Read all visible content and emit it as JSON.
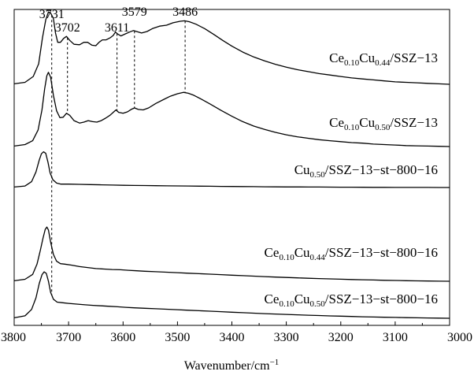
{
  "chart_data": {
    "type": "line",
    "title": "",
    "xlabel": "Wavenumber/cm",
    "xlabel_sup": "−1",
    "ylabel": "",
    "xlim": [
      3800,
      3000
    ],
    "x_reversed": true,
    "xticks": [
      3800,
      3700,
      3600,
      3500,
      3400,
      3300,
      3200,
      3100,
      3000
    ],
    "y_axis_visible": false,
    "grid": false,
    "legend": "none",
    "line_color": "#000000",
    "peak_labels": [
      {
        "label": "3731",
        "x": 3731,
        "dash_bottom_series": 4
      },
      {
        "label": "3702",
        "x": 3702,
        "dash_bottom_series": 1
      },
      {
        "label": "3611",
        "x": 3611,
        "dash_bottom_series": 1
      },
      {
        "label": "3579",
        "x": 3579,
        "dash_bottom_series": 1
      },
      {
        "label": "3486",
        "x": 3486,
        "dash_bottom_series": 1
      }
    ],
    "series": [
      {
        "name": "Ce0.10Cu0.44/SSZ-13",
        "label_parts": [
          [
            "Ce",
            ""
          ],
          [
            "0.10",
            "sub"
          ],
          [
            "Cu",
            ""
          ],
          [
            "0.44",
            "sub"
          ],
          [
            "/SSZ-13",
            ""
          ]
        ],
        "points": [
          [
            3800,
            0.1
          ],
          [
            3780,
            0.4
          ],
          [
            3765,
            1.6
          ],
          [
            3755,
            4.2
          ],
          [
            3748,
            9.5
          ],
          [
            3742,
            13.2
          ],
          [
            3737,
            14.8
          ],
          [
            3733,
            14.6
          ],
          [
            3728,
            13.5
          ],
          [
            3724,
            10.5
          ],
          [
            3720,
            8.6
          ],
          [
            3715,
            8.6
          ],
          [
            3709,
            9.4
          ],
          [
            3704,
            9.8
          ],
          [
            3698,
            9.0
          ],
          [
            3690,
            8.2
          ],
          [
            3680,
            8.1
          ],
          [
            3672,
            8.6
          ],
          [
            3665,
            8.6
          ],
          [
            3657,
            8.0
          ],
          [
            3650,
            7.9
          ],
          [
            3644,
            8.6
          ],
          [
            3638,
            9.1
          ],
          [
            3631,
            9.1
          ],
          [
            3624,
            9.5
          ],
          [
            3618,
            10.0
          ],
          [
            3614,
            10.7
          ],
          [
            3610,
            10.3
          ],
          [
            3604,
            9.9
          ],
          [
            3596,
            10.3
          ],
          [
            3588,
            10.7
          ],
          [
            3581,
            11.0
          ],
          [
            3575,
            10.8
          ],
          [
            3566,
            10.5
          ],
          [
            3556,
            10.8
          ],
          [
            3546,
            11.4
          ],
          [
            3533,
            11.9
          ],
          [
            3520,
            12.1
          ],
          [
            3508,
            12.6
          ],
          [
            3495,
            12.9
          ],
          [
            3487,
            13.0
          ],
          [
            3478,
            12.8
          ],
          [
            3466,
            12.3
          ],
          [
            3450,
            11.4
          ],
          [
            3433,
            10.2
          ],
          [
            3417,
            9.0
          ],
          [
            3400,
            7.8
          ],
          [
            3380,
            6.6
          ],
          [
            3360,
            5.6
          ],
          [
            3340,
            4.8
          ],
          [
            3320,
            4.1
          ],
          [
            3300,
            3.5
          ],
          [
            3280,
            3.0
          ],
          [
            3260,
            2.6
          ],
          [
            3240,
            2.2
          ],
          [
            3220,
            1.9
          ],
          [
            3200,
            1.6
          ],
          [
            3180,
            1.3
          ],
          [
            3160,
            1.1
          ],
          [
            3140,
            0.9
          ],
          [
            3120,
            0.7
          ],
          [
            3100,
            0.5
          ],
          [
            3080,
            0.4
          ],
          [
            3060,
            0.3
          ],
          [
            3040,
            0.2
          ],
          [
            3020,
            0.1
          ],
          [
            3000,
            0.0
          ]
        ]
      },
      {
        "name": "Ce0.10Cu0.50/SSZ-13",
        "label_parts": [
          [
            "Ce",
            ""
          ],
          [
            "0.10",
            "sub"
          ],
          [
            "Cu",
            ""
          ],
          [
            "0.50",
            "sub"
          ],
          [
            "/SSZ-13",
            ""
          ]
        ],
        "points": [
          [
            3800,
            0.1
          ],
          [
            3780,
            0.4
          ],
          [
            3766,
            1.2
          ],
          [
            3756,
            3.4
          ],
          [
            3749,
            7.5
          ],
          [
            3744,
            11.8
          ],
          [
            3740,
            14.5
          ],
          [
            3737,
            15.2
          ],
          [
            3733,
            14.2
          ],
          [
            3728,
            10.5
          ],
          [
            3722,
            7.3
          ],
          [
            3716,
            5.9
          ],
          [
            3710,
            6.0
          ],
          [
            3704,
            6.8
          ],
          [
            3698,
            6.4
          ],
          [
            3690,
            5.3
          ],
          [
            3680,
            4.8
          ],
          [
            3672,
            5.0
          ],
          [
            3664,
            5.3
          ],
          [
            3656,
            5.1
          ],
          [
            3648,
            5.0
          ],
          [
            3640,
            5.3
          ],
          [
            3632,
            5.8
          ],
          [
            3624,
            6.4
          ],
          [
            3617,
            7.1
          ],
          [
            3613,
            7.5
          ],
          [
            3608,
            7.0
          ],
          [
            3600,
            6.8
          ],
          [
            3592,
            7.1
          ],
          [
            3585,
            7.6
          ],
          [
            3579,
            7.9
          ],
          [
            3572,
            7.6
          ],
          [
            3563,
            7.5
          ],
          [
            3553,
            7.9
          ],
          [
            3540,
            8.8
          ],
          [
            3526,
            9.6
          ],
          [
            3513,
            10.3
          ],
          [
            3500,
            10.8
          ],
          [
            3489,
            11.1
          ],
          [
            3480,
            10.9
          ],
          [
            3470,
            10.5
          ],
          [
            3456,
            9.7
          ],
          [
            3440,
            8.7
          ],
          [
            3420,
            7.4
          ],
          [
            3400,
            6.2
          ],
          [
            3380,
            5.1
          ],
          [
            3360,
            4.2
          ],
          [
            3340,
            3.5
          ],
          [
            3320,
            2.9
          ],
          [
            3300,
            2.4
          ],
          [
            3280,
            2.0
          ],
          [
            3260,
            1.7
          ],
          [
            3240,
            1.4
          ],
          [
            3220,
            1.2
          ],
          [
            3200,
            1.0
          ],
          [
            3180,
            0.8
          ],
          [
            3160,
            0.7
          ],
          [
            3140,
            0.5
          ],
          [
            3120,
            0.4
          ],
          [
            3100,
            0.3
          ],
          [
            3080,
            0.2
          ],
          [
            3060,
            0.15
          ],
          [
            3040,
            0.1
          ],
          [
            3020,
            0.05
          ],
          [
            3000,
            0.0
          ]
        ]
      },
      {
        "name": "Cu0.50/SSZ-13-st-800-16",
        "label_parts": [
          [
            "Cu",
            ""
          ],
          [
            "0.50",
            "sub"
          ],
          [
            "/SSZ-13-st-800-16",
            ""
          ]
        ],
        "points": [
          [
            3800,
            0.1
          ],
          [
            3780,
            0.3
          ],
          [
            3768,
            1.2
          ],
          [
            3760,
            3.2
          ],
          [
            3754,
            5.6
          ],
          [
            3750,
            6.9
          ],
          [
            3746,
            7.3
          ],
          [
            3742,
            7.0
          ],
          [
            3738,
            5.2
          ],
          [
            3734,
            3.0
          ],
          [
            3729,
            1.6
          ],
          [
            3722,
            0.9
          ],
          [
            3714,
            0.7
          ],
          [
            3700,
            0.7
          ],
          [
            3680,
            0.65
          ],
          [
            3660,
            0.6
          ],
          [
            3640,
            0.55
          ],
          [
            3620,
            0.5
          ],
          [
            3600,
            0.45
          ],
          [
            3580,
            0.42
          ],
          [
            3560,
            0.4
          ],
          [
            3540,
            0.37
          ],
          [
            3520,
            0.34
          ],
          [
            3500,
            0.32
          ],
          [
            3480,
            0.3
          ],
          [
            3460,
            0.27
          ],
          [
            3440,
            0.25
          ],
          [
            3420,
            0.23
          ],
          [
            3400,
            0.21
          ],
          [
            3380,
            0.19
          ],
          [
            3360,
            0.17
          ],
          [
            3340,
            0.15
          ],
          [
            3320,
            0.13
          ],
          [
            3300,
            0.12
          ],
          [
            3280,
            0.11
          ],
          [
            3260,
            0.1
          ],
          [
            3240,
            0.09
          ],
          [
            3220,
            0.08
          ],
          [
            3200,
            0.07
          ],
          [
            3180,
            0.06
          ],
          [
            3160,
            0.05
          ],
          [
            3140,
            0.04
          ],
          [
            3120,
            0.03
          ],
          [
            3100,
            0.02
          ],
          [
            3080,
            0.02
          ],
          [
            3060,
            0.01
          ],
          [
            3040,
            0.01
          ],
          [
            3020,
            0.0
          ],
          [
            3000,
            0.0
          ]
        ]
      },
      {
        "name": "Ce0.10Cu0.44/SSZ-13-st-800-16",
        "label_parts": [
          [
            "Ce",
            ""
          ],
          [
            "0.10",
            "sub"
          ],
          [
            "Cu",
            ""
          ],
          [
            "0.44",
            "sub"
          ],
          [
            "/SSZ-13-st-800-16",
            ""
          ]
        ],
        "points": [
          [
            3800,
            0.1
          ],
          [
            3780,
            0.4
          ],
          [
            3766,
            1.4
          ],
          [
            3758,
            3.5
          ],
          [
            3752,
            6.3
          ],
          [
            3747,
            8.8
          ],
          [
            3743,
            10.6
          ],
          [
            3740,
            11.1
          ],
          [
            3737,
            10.5
          ],
          [
            3733,
            8.0
          ],
          [
            3728,
            5.5
          ],
          [
            3722,
            4.1
          ],
          [
            3715,
            3.6
          ],
          [
            3707,
            3.5
          ],
          [
            3695,
            3.3
          ],
          [
            3680,
            3.0
          ],
          [
            3665,
            2.8
          ],
          [
            3650,
            2.6
          ],
          [
            3635,
            2.5
          ],
          [
            3620,
            2.4
          ],
          [
            3605,
            2.35
          ],
          [
            3590,
            2.25
          ],
          [
            3575,
            2.15
          ],
          [
            3560,
            2.05
          ],
          [
            3540,
            1.95
          ],
          [
            3520,
            1.85
          ],
          [
            3500,
            1.75
          ],
          [
            3480,
            1.65
          ],
          [
            3460,
            1.55
          ],
          [
            3440,
            1.45
          ],
          [
            3420,
            1.35
          ],
          [
            3400,
            1.25
          ],
          [
            3380,
            1.15
          ],
          [
            3360,
            1.05
          ],
          [
            3340,
            0.95
          ],
          [
            3320,
            0.86
          ],
          [
            3300,
            0.78
          ],
          [
            3280,
            0.7
          ],
          [
            3260,
            0.62
          ],
          [
            3240,
            0.55
          ],
          [
            3220,
            0.48
          ],
          [
            3200,
            0.42
          ],
          [
            3180,
            0.36
          ],
          [
            3160,
            0.3
          ],
          [
            3140,
            0.25
          ],
          [
            3120,
            0.2
          ],
          [
            3100,
            0.16
          ],
          [
            3080,
            0.12
          ],
          [
            3060,
            0.08
          ],
          [
            3040,
            0.05
          ],
          [
            3020,
            0.02
          ],
          [
            3000,
            0.0
          ]
        ]
      },
      {
        "name": "Ce0.10Cu0.50/SSZ-13-st-800-16",
        "label_parts": [
          [
            "Ce",
            ""
          ],
          [
            "0.10",
            "sub"
          ],
          [
            "Cu",
            ""
          ],
          [
            "0.50",
            "sub"
          ],
          [
            "/SSZ-13-st-800-16",
            ""
          ]
        ],
        "points": [
          [
            3800,
            0.1
          ],
          [
            3780,
            0.5
          ],
          [
            3768,
            1.8
          ],
          [
            3760,
            4.2
          ],
          [
            3754,
            7.1
          ],
          [
            3749,
            8.9
          ],
          [
            3745,
            9.5
          ],
          [
            3741,
            9.2
          ],
          [
            3737,
            7.6
          ],
          [
            3733,
            5.3
          ],
          [
            3728,
            3.9
          ],
          [
            3721,
            3.3
          ],
          [
            3712,
            3.2
          ],
          [
            3700,
            3.05
          ],
          [
            3685,
            2.9
          ],
          [
            3670,
            2.75
          ],
          [
            3655,
            2.65
          ],
          [
            3640,
            2.55
          ],
          [
            3625,
            2.45
          ],
          [
            3610,
            2.35
          ],
          [
            3595,
            2.25
          ],
          [
            3580,
            2.15
          ],
          [
            3560,
            2.05
          ],
          [
            3540,
            1.95
          ],
          [
            3520,
            1.85
          ],
          [
            3500,
            1.75
          ],
          [
            3480,
            1.65
          ],
          [
            3460,
            1.55
          ],
          [
            3440,
            1.45
          ],
          [
            3420,
            1.35
          ],
          [
            3400,
            1.25
          ],
          [
            3380,
            1.15
          ],
          [
            3360,
            1.05
          ],
          [
            3340,
            0.95
          ],
          [
            3320,
            0.87
          ],
          [
            3300,
            0.79
          ],
          [
            3280,
            0.71
          ],
          [
            3260,
            0.63
          ],
          [
            3240,
            0.56
          ],
          [
            3220,
            0.49
          ],
          [
            3200,
            0.43
          ],
          [
            3180,
            0.37
          ],
          [
            3160,
            0.31
          ],
          [
            3140,
            0.26
          ],
          [
            3120,
            0.21
          ],
          [
            3100,
            0.17
          ],
          [
            3080,
            0.13
          ],
          [
            3060,
            0.09
          ],
          [
            3040,
            0.06
          ],
          [
            3020,
            0.03
          ],
          [
            3000,
            0.0
          ]
        ]
      }
    ]
  }
}
